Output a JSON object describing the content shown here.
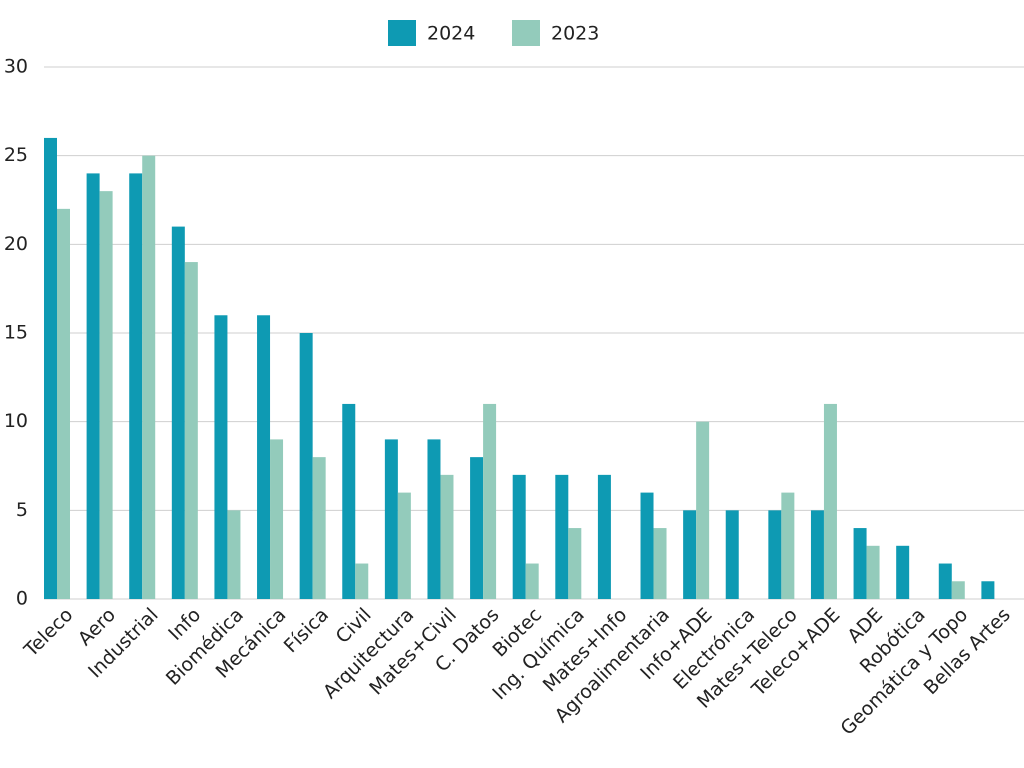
{
  "chart_data": {
    "type": "bar",
    "categories": [
      "Teleco",
      "Aero",
      "Industrial",
      "Info",
      "Biomédica",
      "Mecánica",
      "Física",
      "Civil",
      "Arquitectura",
      "Mates+Civil",
      "C. Datos",
      "Biotec",
      "Ing. Química",
      "Mates+Info",
      "Agroalimentaria",
      "Info+ADE",
      "Electrónica",
      "Mates+Teleco",
      "Teleco+ADE",
      "ADE",
      "Robótica",
      "Geomática y Topo",
      "Bellas Artes"
    ],
    "series": [
      {
        "name": "2024",
        "color": "#0e9ab3",
        "values": [
          26,
          24,
          24,
          21,
          16,
          16,
          15,
          11,
          9,
          9,
          8,
          7,
          7,
          7,
          6,
          5,
          5,
          5,
          5,
          4,
          3,
          2,
          1
        ]
      },
      {
        "name": "2023",
        "color": "#93cbbb",
        "values": [
          22,
          23,
          25,
          19,
          5,
          9,
          8,
          2,
          6,
          7,
          11,
          2,
          4,
          0,
          4,
          10,
          0,
          6,
          11,
          3,
          0,
          1,
          0
        ]
      }
    ],
    "ylim": [
      0,
      30
    ],
    "yticks": [
      0,
      5,
      10,
      15,
      20,
      25,
      30
    ],
    "grid": true,
    "legend": "top"
  }
}
